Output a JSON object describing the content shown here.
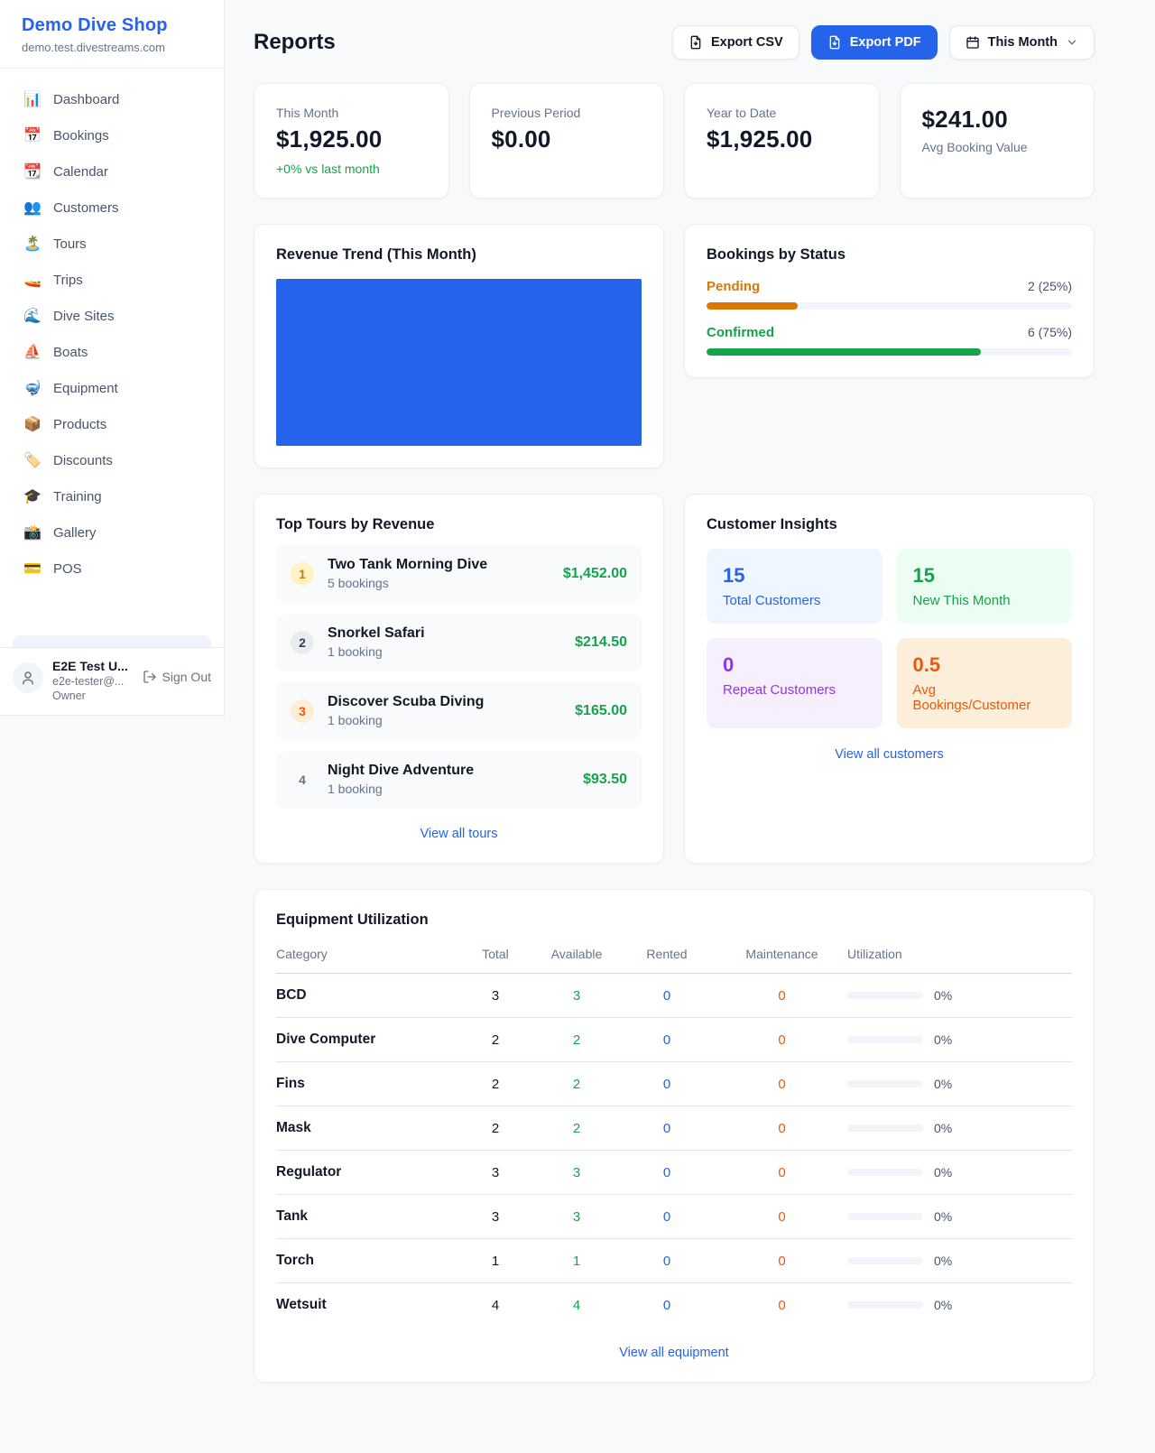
{
  "colors": {
    "accent_blue": "#2563eb",
    "revenue_fill": "#2563eb",
    "green": "#16a34a",
    "pending_orange": "#d97706",
    "maintenance_orange": "#ea580c",
    "purple": "#9333ea"
  },
  "sidebar": {
    "brand": {
      "name": "Demo Dive Shop",
      "domain": "demo.test.divestreams.com"
    },
    "nav": [
      {
        "id": "dashboard",
        "icon": "📊",
        "icon_name": "dashboard-icon",
        "label": "Dashboard"
      },
      {
        "id": "bookings",
        "icon": "📅",
        "icon_name": "bookings-icon",
        "label": "Bookings"
      },
      {
        "id": "calendar",
        "icon": "📆",
        "icon_name": "calendar-icon",
        "label": "Calendar"
      },
      {
        "id": "customers",
        "icon": "👥",
        "icon_name": "customers-icon",
        "label": "Customers"
      },
      {
        "id": "tours",
        "icon": "🏝️",
        "icon_name": "tours-icon",
        "label": "Tours"
      },
      {
        "id": "trips",
        "icon": "🚤",
        "icon_name": "trips-icon",
        "label": "Trips"
      },
      {
        "id": "dive-sites",
        "icon": "🌊",
        "icon_name": "dive-sites-icon",
        "label": "Dive Sites"
      },
      {
        "id": "boats",
        "icon": "⛵",
        "icon_name": "boats-icon",
        "label": "Boats"
      },
      {
        "id": "equipment",
        "icon": "🤿",
        "icon_name": "equipment-icon",
        "label": "Equipment"
      },
      {
        "id": "products",
        "icon": "📦",
        "icon_name": "products-icon",
        "label": "Products"
      },
      {
        "id": "discounts",
        "icon": "🏷️",
        "icon_name": "discounts-icon",
        "label": "Discounts"
      },
      {
        "id": "training",
        "icon": "🎓",
        "icon_name": "training-icon",
        "label": "Training"
      },
      {
        "id": "gallery",
        "icon": "📸",
        "icon_name": "gallery-icon",
        "label": "Gallery"
      },
      {
        "id": "pos",
        "icon": "💳",
        "icon_name": "pos-icon",
        "label": "POS"
      }
    ],
    "user": {
      "name": "E2E Test U...",
      "email": "e2e-tester@...",
      "role": "Owner",
      "signout_label": "Sign Out"
    }
  },
  "header": {
    "title": "Reports",
    "export_csv_label": "Export CSV",
    "export_pdf_label": "Export PDF",
    "period_label": "This Month"
  },
  "stats": [
    {
      "label": "This Month",
      "value": "$1,925.00",
      "delta": "+0% vs last month"
    },
    {
      "label": "Previous Period",
      "value": "$0.00"
    },
    {
      "label": "Year to Date",
      "value": "$1,925.00"
    },
    {
      "label": "Avg Booking Value",
      "value": "$241.00",
      "value_first": true
    }
  ],
  "revenue_trend": {
    "title": "Revenue Trend (This Month)",
    "note": "single full-area bar",
    "fill_color": "#2563eb"
  },
  "bookings_by_status": {
    "title": "Bookings by Status",
    "rows": [
      {
        "label": "Pending",
        "count_text": "2 (25%)",
        "pct": 25,
        "color": "#d97706"
      },
      {
        "label": "Confirmed",
        "count_text": "6 (75%)",
        "pct": 75,
        "color": "#16a34a"
      }
    ]
  },
  "top_tours": {
    "title": "Top Tours by Revenue",
    "view_all_label": "View all tours",
    "items": [
      {
        "rank": "1",
        "name": "Two Tank Morning Dive",
        "bookings": "5 bookings",
        "revenue": "$1,452.00",
        "rank_fg": "#d97706",
        "rank_bg": "#fef3c7"
      },
      {
        "rank": "2",
        "name": "Snorkel Safari",
        "bookings": "1 booking",
        "revenue": "$214.50",
        "rank_fg": "#334155",
        "rank_bg": "#e9edf2"
      },
      {
        "rank": "3",
        "name": "Discover Scuba Diving",
        "bookings": "1 booking",
        "revenue": "$165.00",
        "rank_fg": "#ea580c",
        "rank_bg": "#ffedd5"
      },
      {
        "rank": "4",
        "name": "Night Dive Adventure",
        "bookings": "1 booking",
        "revenue": "$93.50",
        "rank_fg": "#64748b",
        "rank_bg": "transparent"
      }
    ]
  },
  "customer_insights": {
    "title": "Customer Insights",
    "view_all_label": "View all customers",
    "tiles": [
      {
        "value": "15",
        "label": "Total Customers",
        "fg": "#2563eb",
        "bg": "#eff6ff"
      },
      {
        "value": "15",
        "label": "New This Month",
        "fg": "#16a34a",
        "bg": "#ecfdf3"
      },
      {
        "value": "0",
        "label": "Repeat Customers",
        "fg": "#9333ea",
        "bg": "#f6f0fe"
      },
      {
        "value": "0.5",
        "label": "Avg Bookings/Customer",
        "fg": "#ea580c",
        "bg": "#fdeeda"
      }
    ]
  },
  "equipment": {
    "title": "Equipment Utilization",
    "view_all_label": "View all equipment",
    "columns": [
      "Category",
      "Total",
      "Available",
      "Rented",
      "Maintenance",
      "Utilization"
    ],
    "rows": [
      {
        "category": "BCD",
        "total": "3",
        "available": "3",
        "rented": "0",
        "maintenance": "0",
        "utilization": "0%"
      },
      {
        "category": "Dive Computer",
        "total": "2",
        "available": "2",
        "rented": "0",
        "maintenance": "0",
        "utilization": "0%"
      },
      {
        "category": "Fins",
        "total": "2",
        "available": "2",
        "rented": "0",
        "maintenance": "0",
        "utilization": "0%"
      },
      {
        "category": "Mask",
        "total": "2",
        "available": "2",
        "rented": "0",
        "maintenance": "0",
        "utilization": "0%"
      },
      {
        "category": "Regulator",
        "total": "3",
        "available": "3",
        "rented": "0",
        "maintenance": "0",
        "utilization": "0%"
      },
      {
        "category": "Tank",
        "total": "3",
        "available": "3",
        "rented": "0",
        "maintenance": "0",
        "utilization": "0%"
      },
      {
        "category": "Torch",
        "total": "1",
        "available": "1",
        "rented": "0",
        "maintenance": "0",
        "utilization": "0%"
      },
      {
        "category": "Wetsuit",
        "total": "4",
        "available": "4",
        "rented": "0",
        "maintenance": "0",
        "utilization": "0%"
      }
    ]
  }
}
